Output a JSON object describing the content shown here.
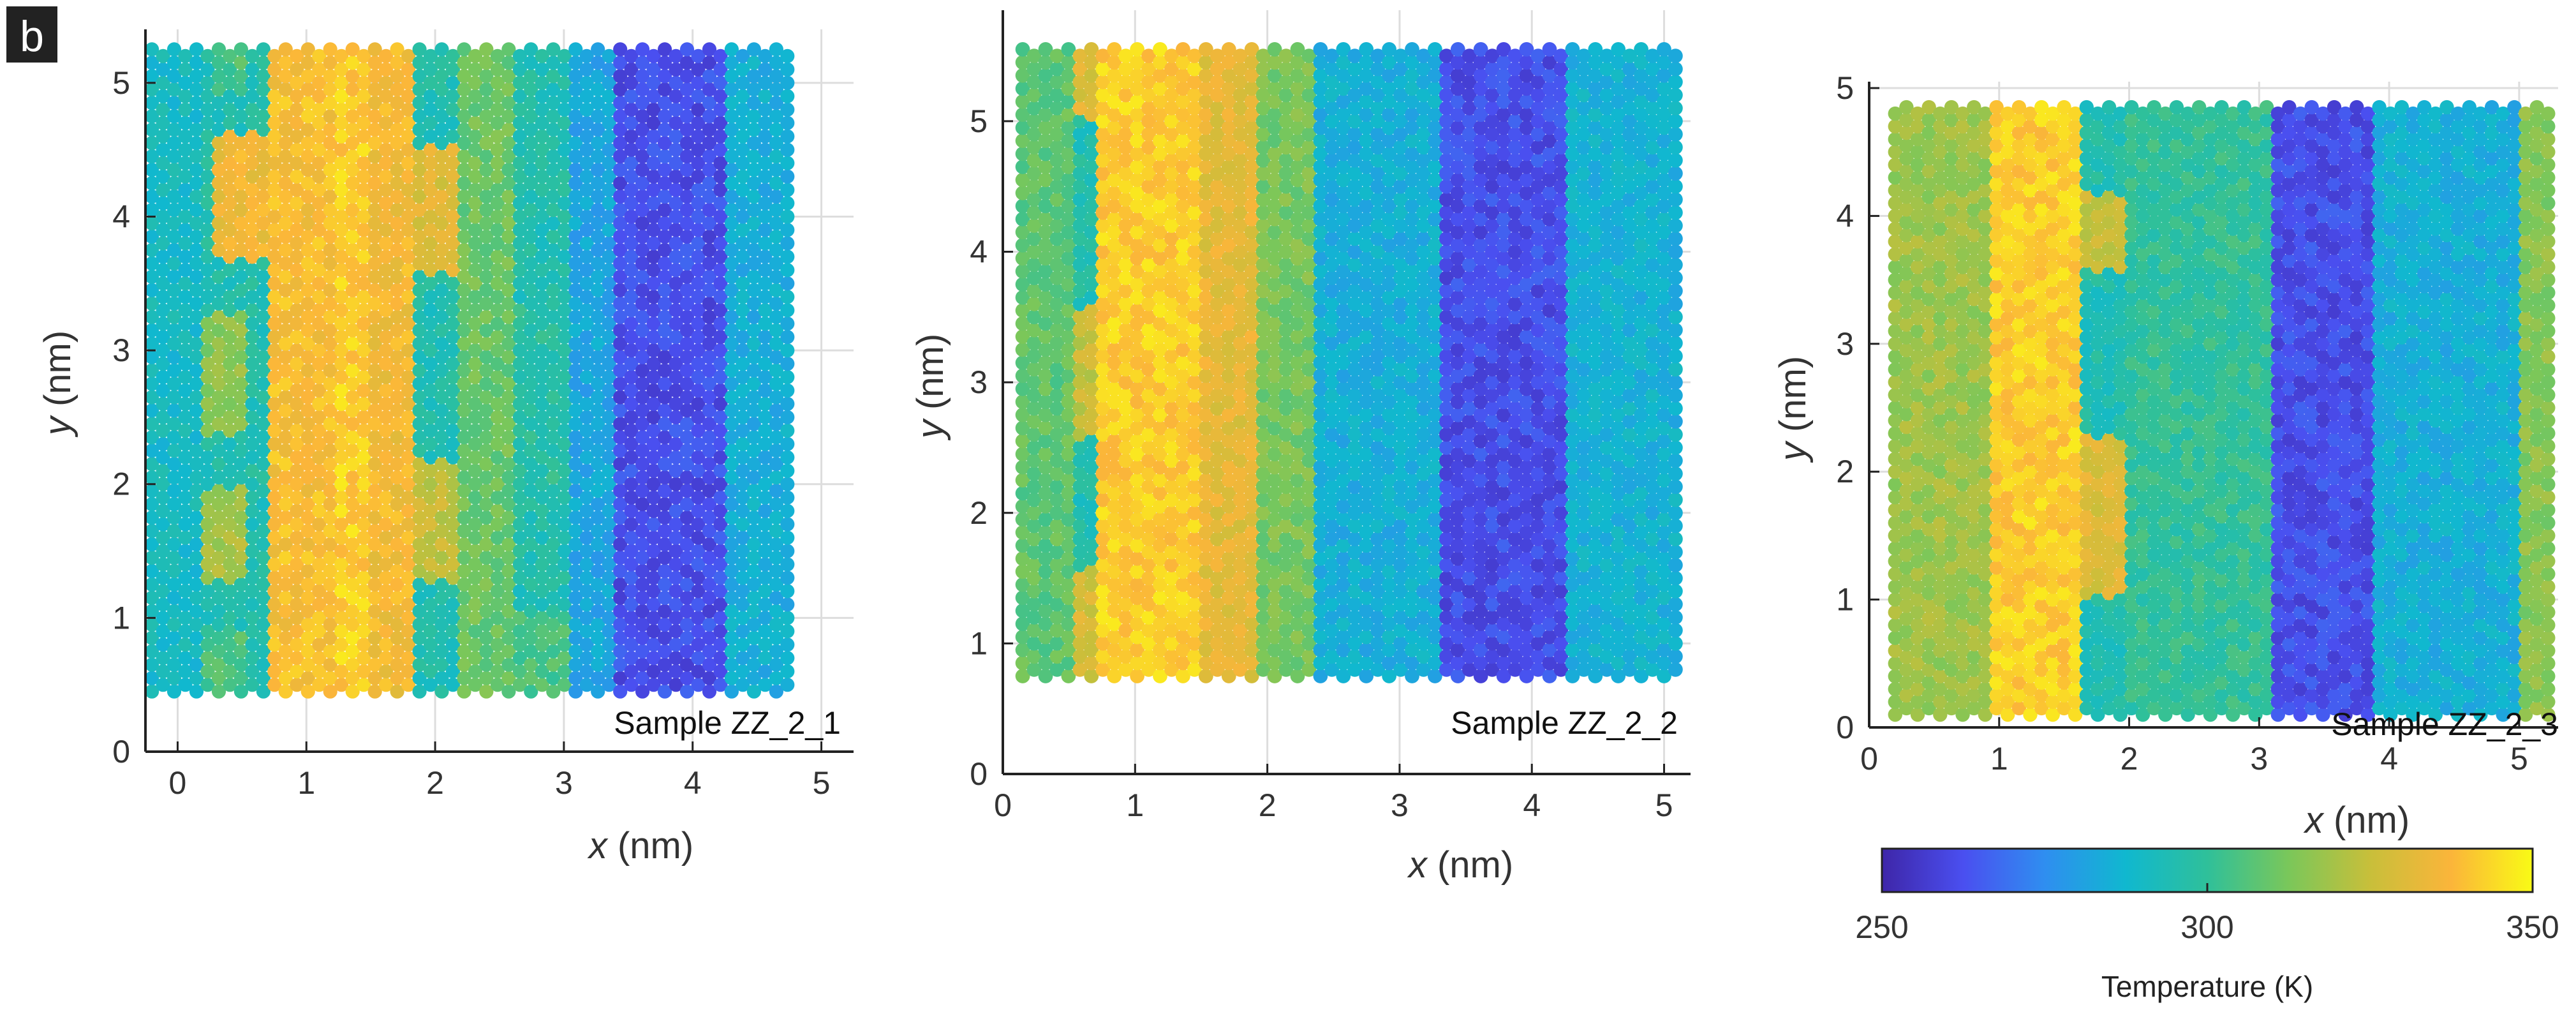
{
  "panel_label": "b",
  "chart_data": [
    {
      "type": "scatter",
      "sample_label": "Sample ZZ_2_1",
      "xlabel_var": "x",
      "xlabel_unit": " (nm)",
      "ylabel_var": "y",
      "ylabel_unit": " (nm)",
      "xlim": [
        -0.25,
        5.25
      ],
      "ylim": [
        0,
        5.4
      ],
      "xticks": [
        0,
        1,
        2,
        3,
        4,
        5
      ],
      "yticks": [
        0,
        1,
        2,
        3,
        4,
        5
      ],
      "grid": true,
      "lattice": {
        "x_range": [
          -0.2,
          4.75
        ],
        "y_range": [
          0.45,
          5.25
        ]
      },
      "regions": [
        {
          "x": [
            -0.2,
            0.15
          ],
          "y": [
            0.45,
            5.25
          ],
          "temperature": 290
        },
        {
          "x": [
            0.15,
            0.55
          ],
          "y": [
            0.45,
            0.9
          ],
          "temperature": 305
        },
        {
          "x": [
            0.15,
            0.55
          ],
          "y": [
            2.4,
            3.3
          ],
          "temperature": 315
        },
        {
          "x": [
            0.25,
            0.55
          ],
          "y": [
            4.9,
            5.25
          ],
          "temperature": 305
        },
        {
          "x": [
            0.15,
            0.55
          ],
          "y": [
            1.3,
            2.0
          ],
          "temperature": 320
        },
        {
          "x": [
            0.25,
            0.75
          ],
          "y": [
            3.7,
            4.6
          ],
          "temperature": 335
        },
        {
          "x": [
            0.75,
            1.2
          ],
          "y": [
            0.45,
            5.25
          ],
          "temperature": 338
        },
        {
          "x": [
            1.2,
            1.5
          ],
          "y": [
            0.45,
            5.25
          ],
          "temperature": 342
        },
        {
          "x": [
            1.5,
            1.85
          ],
          "y": [
            0.45,
            5.25
          ],
          "temperature": 336
        },
        {
          "x": [
            1.85,
            2.2
          ],
          "y": [
            3.6,
            4.5
          ],
          "temperature": 330
        },
        {
          "x": [
            1.85,
            2.2
          ],
          "y": [
            1.3,
            2.2
          ],
          "temperature": 325
        },
        {
          "x": [
            2.2,
            2.65
          ],
          "y": [
            0.45,
            5.25
          ],
          "temperature": 310
        },
        {
          "x": [
            2.65,
            3.05
          ],
          "y": [
            0.45,
            1.0
          ],
          "temperature": 305
        },
        {
          "x": [
            2.65,
            3.05
          ],
          "y": [
            2.0,
            3.4
          ],
          "temperature": 298
        },
        {
          "x": [
            2.65,
            3.05
          ],
          "y": [
            4.2,
            5.25
          ],
          "temperature": 295
        },
        {
          "x": [
            3.05,
            3.4
          ],
          "y": [
            0.45,
            5.25
          ],
          "temperature": 282
        },
        {
          "x": [
            3.4,
            4.3
          ],
          "y": [
            0.45,
            5.25
          ],
          "temperature": 262
        },
        {
          "x": [
            4.3,
            4.75
          ],
          "y": [
            0.45,
            5.25
          ],
          "temperature": 285
        }
      ]
    },
    {
      "type": "scatter",
      "sample_label": "Sample ZZ_2_2",
      "xlabel_var": "x",
      "xlabel_unit": " (nm)",
      "ylabel_var": "y",
      "ylabel_unit": " (nm)",
      "xlim": [
        0,
        5.2
      ],
      "ylim": [
        0,
        5.85
      ],
      "xticks": [
        0,
        1,
        2,
        3,
        4,
        5
      ],
      "yticks": [
        0,
        1,
        2,
        3,
        4,
        5
      ],
      "grid": true,
      "lattice": {
        "x_range": [
          0.15,
          5.1
        ],
        "y_range": [
          0.75,
          5.55
        ]
      },
      "regions": [
        {
          "x": [
            0.15,
            0.55
          ],
          "y": [
            0.75,
            5.55
          ],
          "temperature": 308
        },
        {
          "x": [
            0.55,
            0.75
          ],
          "y": [
            0.75,
            1.6
          ],
          "temperature": 328
        },
        {
          "x": [
            0.55,
            0.75
          ],
          "y": [
            2.6,
            3.6
          ],
          "temperature": 325
        },
        {
          "x": [
            0.55,
            0.75
          ],
          "y": [
            5.0,
            5.55
          ],
          "temperature": 330
        },
        {
          "x": [
            0.75,
            1.5
          ],
          "y": [
            0.75,
            5.55
          ],
          "temperature": 342
        },
        {
          "x": [
            1.5,
            1.9
          ],
          "y": [
            0.75,
            5.55
          ],
          "temperature": 332
        },
        {
          "x": [
            1.9,
            2.4
          ],
          "y": [
            0.75,
            5.55
          ],
          "temperature": 312
        },
        {
          "x": [
            2.4,
            3.3
          ],
          "y": [
            0.75,
            5.55
          ],
          "temperature": 285
        },
        {
          "x": [
            3.3,
            4.3
          ],
          "y": [
            0.75,
            5.55
          ],
          "temperature": 262
        },
        {
          "x": [
            4.3,
            5.1
          ],
          "y": [
            0.75,
            5.55
          ],
          "temperature": 286
        }
      ]
    },
    {
      "type": "scatter",
      "sample_label": "Sample ZZ_2_3",
      "xlabel_var": "x",
      "xlabel_unit": " (nm)",
      "ylabel_var": "y",
      "ylabel_unit": " (nm)",
      "xlim": [
        0,
        5.3
      ],
      "ylim": [
        0,
        5.05
      ],
      "xticks": [
        0,
        1,
        2,
        3,
        4,
        5
      ],
      "yticks": [
        0,
        1,
        2,
        3,
        4,
        5
      ],
      "grid": true,
      "lattice": {
        "x_range": [
          0.2,
          5.25
        ],
        "y_range": [
          0.1,
          4.85
        ]
      },
      "regions": [
        {
          "x": [
            0.2,
            0.9
          ],
          "y": [
            0.1,
            4.85
          ],
          "temperature": 318
        },
        {
          "x": [
            0.9,
            1.6
          ],
          "y": [
            0.1,
            4.85
          ],
          "temperature": 342
        },
        {
          "x": [
            1.6,
            1.95
          ],
          "y": [
            1.0,
            2.3
          ],
          "temperature": 330
        },
        {
          "x": [
            1.6,
            1.95
          ],
          "y": [
            3.6,
            4.2
          ],
          "temperature": 325
        },
        {
          "x": [
            1.95,
            3.1
          ],
          "y": [
            0.1,
            4.85
          ],
          "temperature": 300
        },
        {
          "x": [
            3.1,
            3.9
          ],
          "y": [
            0.1,
            4.85
          ],
          "temperature": 262
        },
        {
          "x": [
            3.9,
            5.0
          ],
          "y": [
            0.1,
            4.85
          ],
          "temperature": 285
        },
        {
          "x": [
            5.0,
            5.25
          ],
          "y": [
            0.1,
            4.85
          ],
          "temperature": 315
        }
      ]
    }
  ],
  "colorbar": {
    "min": 250,
    "max": 350,
    "ticks": [
      250,
      300,
      350
    ],
    "label": "Temperature (K)",
    "colors": [
      "#3e26a8",
      "#4a4ff0",
      "#2f8ef0",
      "#10b8cf",
      "#2fc09a",
      "#7ac75a",
      "#c8bf3a",
      "#fbb53a",
      "#f9fb15"
    ]
  }
}
